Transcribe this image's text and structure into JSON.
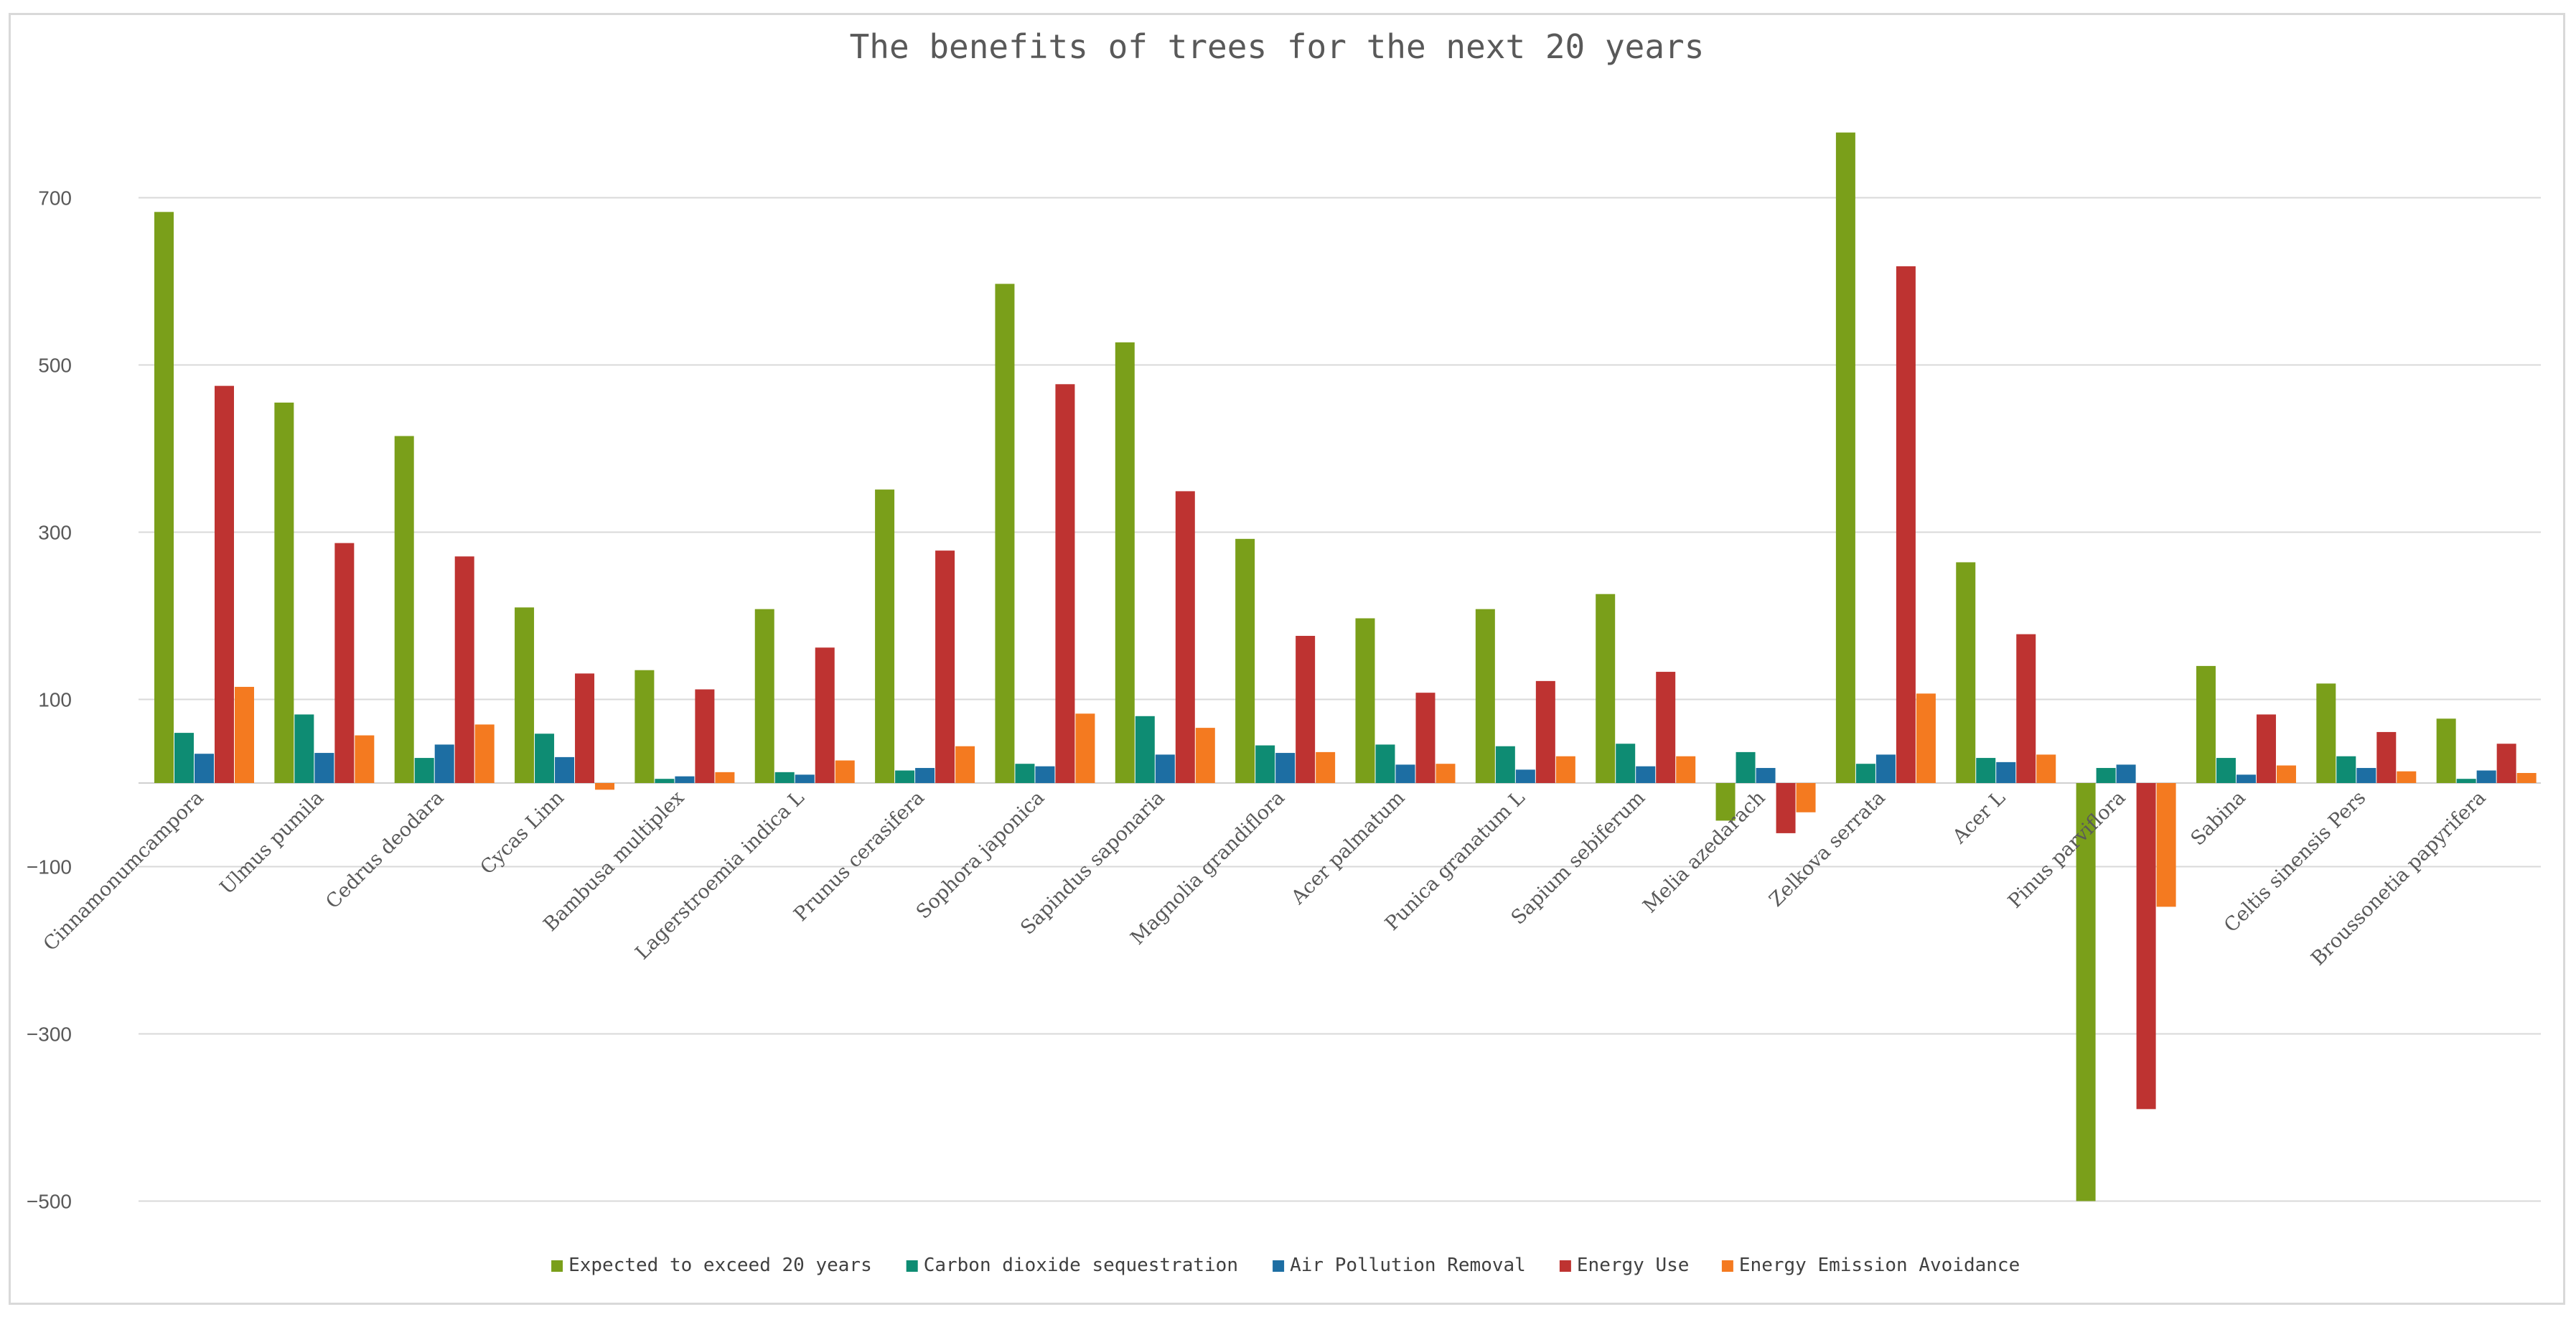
{
  "chart_data": {
    "type": "bar",
    "title": "The benefits of trees for the next 20 years",
    "xlabel": "",
    "ylabel": "",
    "ylim": [
      -500,
      900
    ],
    "yticks": [
      700,
      500,
      300,
      100,
      -100,
      -300,
      -500
    ],
    "grid": true,
    "legend_position": "bottom",
    "categories": [
      "Cinnamonumcampora",
      "Ulmus pumila",
      "Cedrus deodara",
      "Cycas Linn",
      "Bambusa multiplex",
      "Lagerstroemia indica L",
      "Prunus cerasifera",
      "Sophora japonica",
      "Sapindus saponaria",
      "Magnolia grandiflora",
      "Acer palmatum",
      "Punica granatum L",
      "Sapium sebiferum",
      "Melia azedarach",
      "Zelkova serrata",
      "Acer L",
      "Pinus parviflora",
      "Sabina",
      "Celtis sinensis Pers",
      "Broussonetia papyrifera"
    ],
    "series": [
      {
        "name": "Expected to exceed 20 years",
        "color": "#7a9f1a",
        "values": [
          683,
          455,
          415,
          210,
          135,
          208,
          351,
          597,
          527,
          292,
          197,
          208,
          226,
          -45,
          778,
          264,
          -500,
          140,
          119,
          77
        ]
      },
      {
        "name": "Carbon dioxide sequestration",
        "color": "#0e8c73",
        "values": [
          60,
          82,
          30,
          59,
          5,
          13,
          15,
          23,
          80,
          45,
          46,
          44,
          47,
          37,
          23,
          30,
          18,
          30,
          32,
          5
        ]
      },
      {
        "name": "Air Pollution Removal",
        "color": "#1d6ea3",
        "values": [
          35,
          36,
          46,
          31,
          8,
          10,
          18,
          20,
          34,
          36,
          22,
          16,
          20,
          18,
          34,
          25,
          22,
          10,
          18,
          15
        ]
      },
      {
        "name": "Energy Use",
        "color": "#be3331",
        "values": [
          475,
          287,
          271,
          131,
          112,
          162,
          278,
          477,
          349,
          176,
          108,
          122,
          133,
          -60,
          618,
          178,
          -390,
          82,
          61,
          47
        ]
      },
      {
        "name": "Energy Emission Avoidance",
        "color": "#f47a20",
        "values": [
          115,
          57,
          70,
          -8,
          13,
          27,
          44,
          83,
          66,
          37,
          23,
          32,
          32,
          -35,
          107,
          34,
          -148,
          21,
          14,
          12
        ]
      }
    ]
  }
}
